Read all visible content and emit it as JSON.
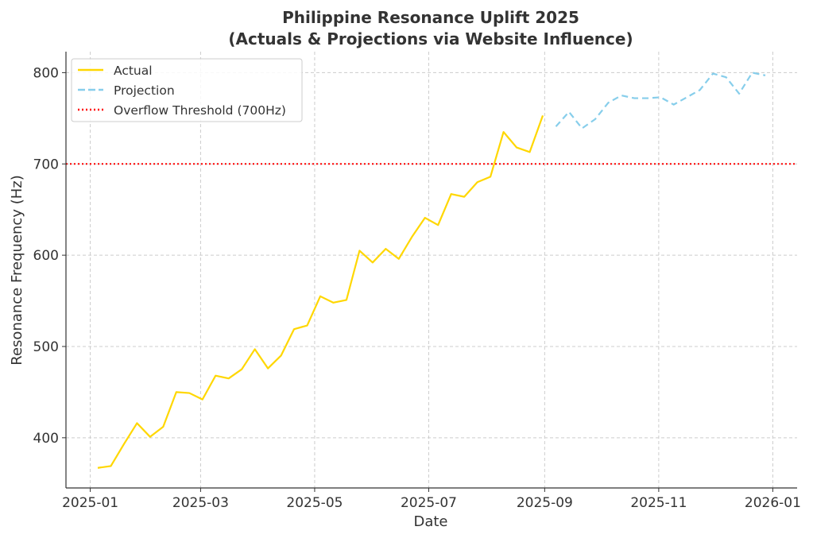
{
  "chart_data": {
    "type": "line",
    "title": "Philippine Resonance Uplift 2025\n(Actuals & Projections via Website Influence)",
    "title_lines": [
      "Philippine Resonance Uplift 2025",
      "(Actuals & Projections via Website Influence)"
    ],
    "xlabel": "Date",
    "ylabel": "Resonance Frequency (Hz)",
    "xlim": [
      "2024-12-19",
      "2026-01-14"
    ],
    "ylim": [
      345,
      823
    ],
    "xticks": [
      "2025-01",
      "2025-03",
      "2025-05",
      "2025-07",
      "2025-09",
      "2025-11",
      "2026-01"
    ],
    "yticks": [
      400,
      500,
      600,
      700,
      800
    ],
    "grid": true,
    "legend_position": "top-left",
    "series": [
      {
        "name": "Actual",
        "color": "#FFD700",
        "style": "solid",
        "start": "2025-01-05",
        "interval_days": 7,
        "values": [
          367,
          369,
          393,
          416,
          401,
          412,
          450,
          449,
          442,
          468,
          465,
          475,
          497,
          476,
          490,
          519,
          523,
          555,
          548,
          551,
          605,
          592,
          607,
          596,
          620,
          641,
          633,
          667,
          664,
          680,
          686,
          735,
          718,
          713,
          753
        ]
      },
      {
        "name": "Projection",
        "color": "#87CEEB",
        "style": "dashed",
        "start": "2025-09-07",
        "interval_days": 7,
        "values": [
          741,
          757,
          739,
          749,
          767,
          775,
          772,
          772,
          773,
          765,
          773,
          781,
          799,
          795,
          777,
          800,
          797
        ]
      }
    ],
    "threshold": {
      "name": "Overflow Threshold (700Hz)",
      "value": 700,
      "color": "#FF0000",
      "style": "dotted"
    }
  }
}
